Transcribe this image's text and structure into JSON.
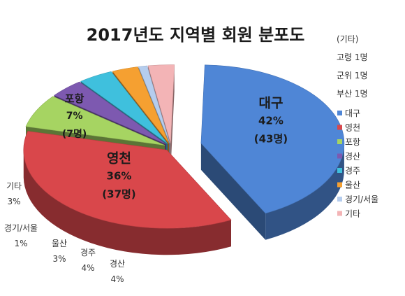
{
  "chart_data": {
    "type": "pie",
    "title": "2017년도 지역별 회원 분포도",
    "slices": [
      {
        "name": "대구",
        "percent": "42%",
        "count": "(43명)",
        "value": 43,
        "color": "#4f86d6"
      },
      {
        "name": "영천",
        "percent": "36%",
        "count": "(37명)",
        "value": 37,
        "color": "#d9474b"
      },
      {
        "name": "포항",
        "percent": "7%",
        "count": "(7명)",
        "value": 7,
        "color": "#a6d462"
      },
      {
        "name": "경산",
        "percent": "4%",
        "count": "",
        "value": 4,
        "color": "#7d59b0"
      },
      {
        "name": "경주",
        "percent": "4%",
        "count": "",
        "value": 4,
        "color": "#3fc0dd"
      },
      {
        "name": "울산",
        "percent": "3%",
        "count": "",
        "value": 3,
        "color": "#f5a031"
      },
      {
        "name": "경기/서울",
        "percent": "1%",
        "count": "",
        "value": 1,
        "color": "#b5cdee"
      },
      {
        "name": "기타",
        "percent": "3%",
        "count": "",
        "value": 3,
        "color": "#f3b4b6"
      }
    ],
    "legend_position": "right",
    "notes": {
      "header": "(기타)",
      "items": [
        "고령 1명",
        "군위 1명",
        "부산 1명"
      ]
    }
  }
}
